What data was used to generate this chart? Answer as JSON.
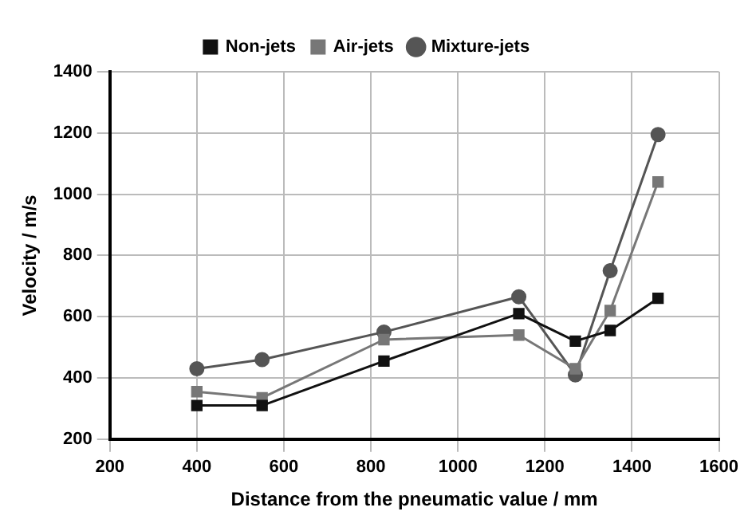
{
  "chart_data": {
    "type": "line",
    "xlabel": "Distance from the pneumatic value / mm",
    "ylabel": "Velocity / m/s",
    "x": [
      400,
      550,
      830,
      1140,
      1270,
      1350,
      1460
    ],
    "series": [
      {
        "name": "Non-jets",
        "color": "#111111",
        "marker": "square",
        "values": [
          310,
          310,
          455,
          610,
          520,
          555,
          660
        ]
      },
      {
        "name": "Air-jets",
        "color": "#777777",
        "marker": "square",
        "values": [
          355,
          335,
          525,
          540,
          430,
          620,
          1040
        ]
      },
      {
        "name": "Mixture-jets",
        "color": "#555555",
        "marker": "circle",
        "values": [
          430,
          460,
          550,
          665,
          410,
          750,
          1195
        ]
      }
    ],
    "xlim": [
      200,
      1600
    ],
    "xticks": [
      200,
      400,
      600,
      800,
      1000,
      1200,
      1400,
      1600
    ],
    "ylim": [
      200,
      1400
    ],
    "yticks": [
      200,
      400,
      600,
      800,
      1000,
      1200,
      1400
    ],
    "grid": true,
    "legend": "top"
  }
}
